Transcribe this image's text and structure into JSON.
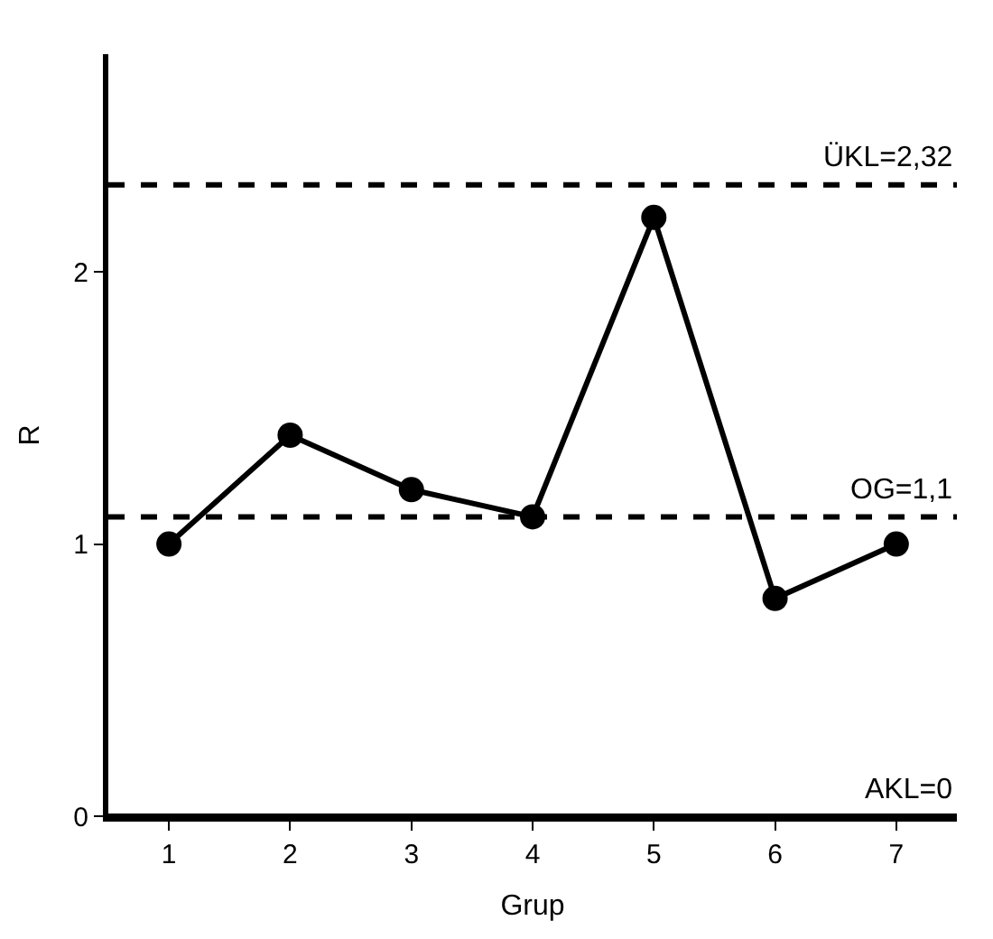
{
  "chart_data": {
    "type": "line",
    "ylabel": "R",
    "xlabel": "Grup",
    "categories": [
      "1",
      "2",
      "3",
      "4",
      "5",
      "6",
      "7"
    ],
    "series": [
      {
        "color": "#000000",
        "values": [
          1.0,
          1.4,
          1.2,
          1.1,
          2.2,
          0.8,
          1.0
        ]
      }
    ],
    "ylim": [
      0,
      2.8
    ],
    "yticks": [
      0,
      1,
      2
    ],
    "marker": "circle",
    "line_style": "solid",
    "ref_lines": [
      {
        "axis": "y",
        "value": 2.32,
        "label": "ÜKL=2,32",
        "color": "#000000",
        "line_style": "dashed"
      },
      {
        "axis": "y",
        "value": 1.1,
        "label": "OG=1,1",
        "color": "#000000",
        "line_style": "dashed"
      },
      {
        "axis": "y",
        "value": 0,
        "label": "AKL=0",
        "color": "#000000",
        "line_style": "solid"
      }
    ]
  }
}
